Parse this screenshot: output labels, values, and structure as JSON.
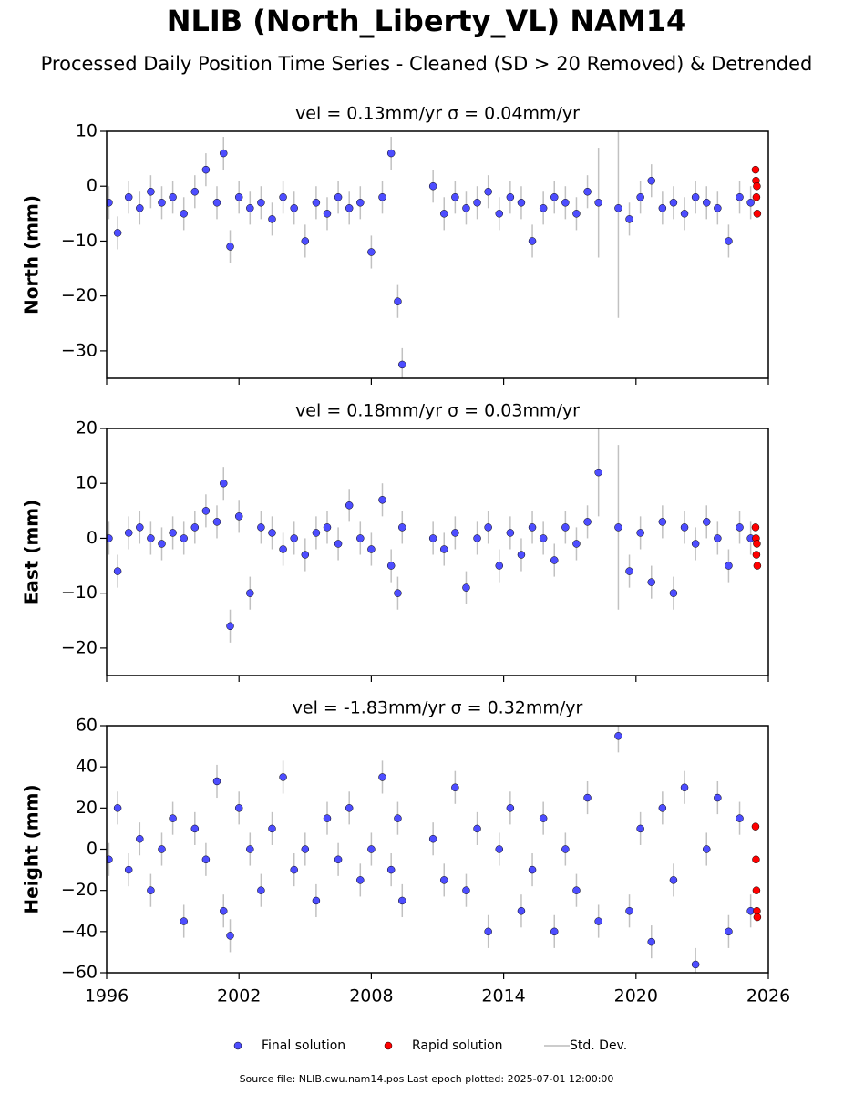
{
  "title": "NLIB (North_Liberty_VL) NAM14",
  "subtitle": "Processed Daily Position Time Series - Cleaned (SD > 20 Removed) & Detrended",
  "errorbar_name": "Std. Dev.",
  "footer": "Source file: NLIB.cwu.nam14.pos  Last epoch plotted: 2025-07-01 12:00:00",
  "chart_data": [
    {
      "type": "scatter",
      "title": "vel = 0.13mm/yr   σ = 0.04mm/yr",
      "y_label": "North (mm)",
      "xlim": [
        1996,
        2026
      ],
      "xticks": [
        1996,
        2002,
        2008,
        2014,
        2020,
        2026
      ],
      "ylim": [
        -35,
        10
      ],
      "yticks": [
        10,
        0,
        {
          "value": -10,
          "label": "−10"
        },
        {
          "value": -20,
          "label": "−20"
        },
        {
          "value": -30,
          "label": "−30"
        }
      ],
      "series": [
        {
          "name": "Final solution",
          "color": "#4d4dff",
          "x": [
            1996.1,
            1996.5,
            1997.0,
            1997.5,
            1998.0,
            1998.5,
            1999.0,
            1999.5,
            2000.0,
            2000.5,
            2001.0,
            2001.3,
            2001.6,
            2002.0,
            2002.5,
            2003.0,
            2003.5,
            2004.0,
            2004.5,
            2005.0,
            2005.5,
            2006.0,
            2006.5,
            2007.0,
            2007.5,
            2008.0,
            2008.5,
            2008.9,
            2009.2,
            2009.4,
            2010.8,
            2011.3,
            2011.8,
            2012.3,
            2012.8,
            2013.3,
            2013.8,
            2014.3,
            2014.8,
            2015.3,
            2015.8,
            2016.3,
            2016.8,
            2017.3,
            2017.8,
            2018.3,
            2019.2,
            2019.7,
            2020.2,
            2020.7,
            2021.2,
            2021.7,
            2022.2,
            2022.7,
            2023.2,
            2023.7,
            2024.2,
            2024.7,
            2025.2
          ],
          "values": [
            -3,
            -8.5,
            -2,
            -4,
            -1,
            -3,
            -2,
            -5,
            -1,
            3,
            -3,
            6,
            -11,
            -2,
            -4,
            -3,
            -6,
            -2,
            -4,
            -10,
            -3,
            -5,
            -2,
            -4,
            -3,
            -12,
            -2,
            6,
            -21,
            -32.5,
            0,
            -5,
            -2,
            -4,
            -3,
            -1,
            -5,
            -2,
            -3,
            -10,
            -4,
            -2,
            -3,
            -5,
            -1,
            -3,
            -4,
            -6,
            -2,
            1,
            -4,
            -3,
            -5,
            -2,
            -3,
            -4,
            -10,
            -2,
            -3
          ],
          "errors": [
            3,
            3,
            3,
            3,
            3,
            3,
            3,
            3,
            3,
            3,
            3,
            3,
            3,
            3,
            3,
            3,
            3,
            3,
            3,
            3,
            3,
            3,
            3,
            3,
            3,
            3,
            3,
            3,
            3,
            3,
            3,
            3,
            3,
            3,
            3,
            3,
            3,
            3,
            3,
            3,
            3,
            3,
            3,
            3,
            3,
            10,
            20,
            3,
            3,
            3,
            3,
            3,
            3,
            3,
            3,
            3,
            3,
            3,
            3
          ]
        },
        {
          "name": "Rapid solution",
          "color": "#ff0000",
          "x": [
            2025.42,
            2025.44,
            2025.46,
            2025.48,
            2025.5
          ],
          "values": [
            3,
            1,
            -2,
            0,
            -5
          ]
        }
      ]
    },
    {
      "type": "scatter",
      "title": "vel = 0.18mm/yr   σ = 0.03mm/yr",
      "y_label": "East (mm)",
      "xlim": [
        1996,
        2026
      ],
      "xticks": [
        1996,
        2002,
        2008,
        2014,
        2020,
        2026
      ],
      "ylim": [
        -25,
        20
      ],
      "yticks": [
        20,
        10,
        0,
        {
          "value": -10,
          "label": "−10"
        },
        {
          "value": -20,
          "label": "−20"
        }
      ],
      "series": [
        {
          "name": "Final solution",
          "color": "#4d4dff",
          "x": [
            1996.1,
            1996.5,
            1997.0,
            1997.5,
            1998.0,
            1998.5,
            1999.0,
            1999.5,
            2000.0,
            2000.5,
            2001.0,
            2001.3,
            2001.6,
            2002.0,
            2002.5,
            2003.0,
            2003.5,
            2004.0,
            2004.5,
            2005.0,
            2005.5,
            2006.0,
            2006.5,
            2007.0,
            2007.5,
            2008.0,
            2008.5,
            2008.9,
            2009.2,
            2009.4,
            2010.8,
            2011.3,
            2011.8,
            2012.3,
            2012.8,
            2013.3,
            2013.8,
            2014.3,
            2014.8,
            2015.3,
            2015.8,
            2016.3,
            2016.8,
            2017.3,
            2017.8,
            2018.3,
            2019.2,
            2019.7,
            2020.2,
            2020.7,
            2021.2,
            2021.7,
            2022.2,
            2022.7,
            2023.2,
            2023.7,
            2024.2,
            2024.7,
            2025.2
          ],
          "values": [
            0,
            -6,
            1,
            2,
            0,
            -1,
            1,
            0,
            2,
            5,
            3,
            10,
            -16,
            4,
            -10,
            2,
            1,
            -2,
            0,
            -3,
            1,
            2,
            -1,
            6,
            0,
            -2,
            7,
            -5,
            -10,
            2,
            0,
            -2,
            1,
            -9,
            0,
            2,
            -5,
            1,
            -3,
            2,
            0,
            -4,
            2,
            -1,
            3,
            12,
            2,
            -6,
            1,
            -8,
            3,
            -10,
            2,
            -1,
            3,
            0,
            -5,
            2,
            0
          ],
          "errors": [
            3,
            3,
            3,
            3,
            3,
            3,
            3,
            3,
            3,
            3,
            3,
            3,
            3,
            3,
            3,
            3,
            3,
            3,
            3,
            3,
            3,
            3,
            3,
            3,
            3,
            3,
            3,
            3,
            3,
            3,
            3,
            3,
            3,
            3,
            3,
            3,
            3,
            3,
            3,
            3,
            3,
            3,
            3,
            3,
            3,
            8,
            15,
            3,
            3,
            3,
            3,
            3,
            3,
            3,
            3,
            3,
            3,
            3,
            3
          ]
        },
        {
          "name": "Rapid solution",
          "color": "#ff0000",
          "x": [
            2025.42,
            2025.44,
            2025.46,
            2025.48,
            2025.5
          ],
          "values": [
            2,
            0,
            -3,
            -1,
            -5
          ]
        }
      ]
    },
    {
      "type": "scatter",
      "title": "vel = -1.83mm/yr   σ = 0.32mm/yr",
      "y_label": "Height (mm)",
      "xlim": [
        1996,
        2026
      ],
      "xticks": [
        1996,
        2002,
        2008,
        2014,
        2020,
        2026
      ],
      "ylim": [
        -60,
        60
      ],
      "yticks": [
        60,
        40,
        20,
        0,
        {
          "value": -20,
          "label": "−20"
        },
        {
          "value": -40,
          "label": "−40"
        },
        {
          "value": -60,
          "label": "−60"
        }
      ],
      "series": [
        {
          "name": "Final solution",
          "color": "#4d4dff",
          "x": [
            1996.1,
            1996.5,
            1997.0,
            1997.5,
            1998.0,
            1998.5,
            1999.0,
            1999.5,
            2000.0,
            2000.5,
            2001.0,
            2001.3,
            2001.6,
            2002.0,
            2002.5,
            2003.0,
            2003.5,
            2004.0,
            2004.5,
            2005.0,
            2005.5,
            2006.0,
            2006.5,
            2007.0,
            2007.5,
            2008.0,
            2008.5,
            2008.9,
            2009.2,
            2009.4,
            2010.8,
            2011.3,
            2011.8,
            2012.3,
            2012.8,
            2013.3,
            2013.8,
            2014.3,
            2014.8,
            2015.3,
            2015.8,
            2016.3,
            2016.8,
            2017.3,
            2017.8,
            2018.3,
            2019.2,
            2019.7,
            2020.2,
            2020.7,
            2021.2,
            2021.7,
            2022.2,
            2022.7,
            2023.2,
            2023.7,
            2024.2,
            2024.7,
            2025.2
          ],
          "values": [
            -5,
            20,
            -10,
            5,
            -20,
            0,
            15,
            -35,
            10,
            -5,
            33,
            -30,
            -42,
            20,
            0,
            -20,
            10,
            35,
            -10,
            0,
            -25,
            15,
            -5,
            20,
            -15,
            0,
            35,
            -10,
            15,
            -25,
            5,
            -15,
            30,
            -20,
            10,
            -40,
            0,
            20,
            -30,
            -10,
            15,
            -40,
            0,
            -20,
            25,
            -35,
            55,
            -30,
            10,
            -45,
            20,
            -15,
            30,
            -56,
            0,
            25,
            -40,
            15,
            -30
          ],
          "errors": [
            8,
            8,
            8,
            8,
            8,
            8,
            8,
            8,
            8,
            8,
            8,
            8,
            8,
            8,
            8,
            8,
            8,
            8,
            8,
            8,
            8,
            8,
            8,
            8,
            8,
            8,
            8,
            8,
            8,
            8,
            8,
            8,
            8,
            8,
            8,
            8,
            8,
            8,
            8,
            8,
            8,
            8,
            8,
            8,
            8,
            8,
            8,
            8,
            8,
            8,
            8,
            8,
            8,
            8,
            8,
            8,
            8,
            8,
            8
          ]
        },
        {
          "name": "Rapid solution",
          "color": "#ff0000",
          "x": [
            2025.42,
            2025.44,
            2025.46,
            2025.48,
            2025.5
          ],
          "values": [
            11,
            -5,
            -20,
            -30,
            -33
          ]
        }
      ]
    }
  ]
}
